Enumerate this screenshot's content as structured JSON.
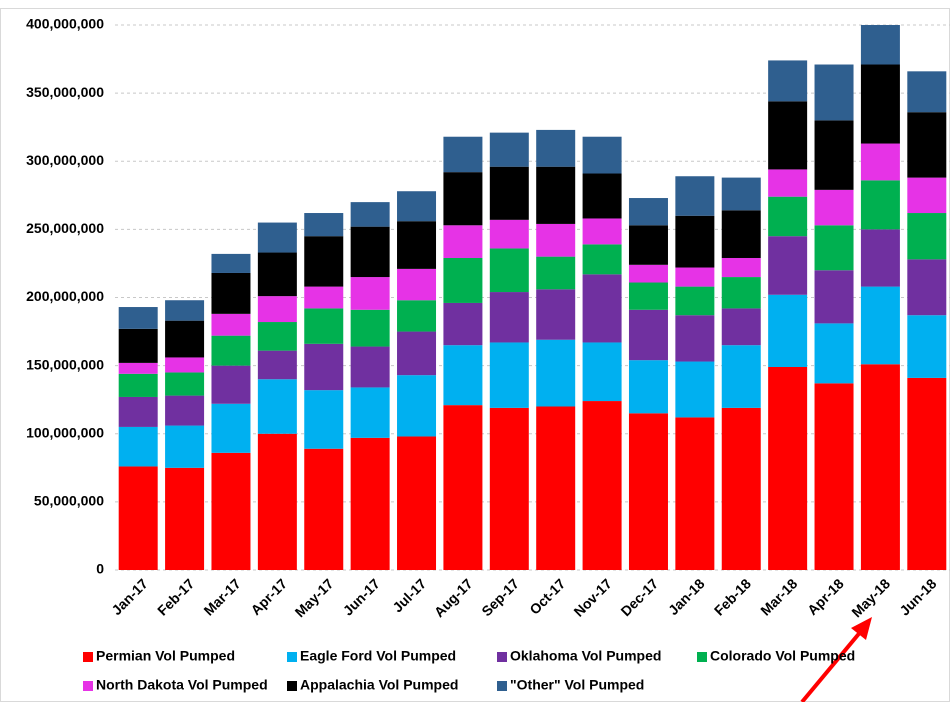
{
  "chart_data": {
    "type": "stacked_bar",
    "categories": [
      "Jan-17",
      "Feb-17",
      "Mar-17",
      "Apr-17",
      "May-17",
      "Jun-17",
      "Jul-17",
      "Aug-17",
      "Sep-17",
      "Oct-17",
      "Nov-17",
      "Dec-17",
      "Jan-18",
      "Feb-18",
      "Mar-18",
      "Apr-18",
      "May-18",
      "Jun-18"
    ],
    "series": [
      {
        "name": "Permian Vol Pumped",
        "color": "#ff0000",
        "values": [
          76000000,
          75000000,
          86000000,
          100000000,
          89000000,
          97000000,
          98000000,
          121000000,
          119000000,
          120000000,
          124000000,
          115000000,
          112000000,
          119000000,
          149000000,
          137000000,
          151000000,
          141000000
        ]
      },
      {
        "name": "Eagle Ford Vol Pumped",
        "color": "#00b0f0",
        "values": [
          29000000,
          31000000,
          36000000,
          40000000,
          43000000,
          37000000,
          45000000,
          44000000,
          48000000,
          49000000,
          43000000,
          39000000,
          41000000,
          46000000,
          53000000,
          44000000,
          57000000,
          46000000
        ]
      },
      {
        "name": "Oklahoma Vol Pumped",
        "color": "#7030a0",
        "values": [
          22000000,
          22000000,
          28000000,
          21000000,
          34000000,
          30000000,
          32000000,
          31000000,
          37000000,
          37000000,
          50000000,
          37000000,
          34000000,
          27000000,
          43000000,
          39000000,
          42000000,
          41000000
        ]
      },
      {
        "name": "Colorado Vol Pumped",
        "color": "#00b050",
        "values": [
          17000000,
          17000000,
          22000000,
          21000000,
          26000000,
          27000000,
          23000000,
          33000000,
          32000000,
          24000000,
          22000000,
          20000000,
          21000000,
          23000000,
          29000000,
          33000000,
          36000000,
          34000000
        ]
      },
      {
        "name": "North Dakota Vol Pumped",
        "color": "#e633e6",
        "values": [
          8000000,
          11000000,
          16000000,
          19000000,
          16000000,
          24000000,
          23000000,
          24000000,
          21000000,
          24000000,
          19000000,
          13000000,
          14000000,
          14000000,
          20000000,
          26000000,
          27000000,
          26000000
        ]
      },
      {
        "name": "Appalachia Vol Pumped",
        "color": "#000000",
        "values": [
          25000000,
          27000000,
          30000000,
          32000000,
          37000000,
          37000000,
          35000000,
          39000000,
          39000000,
          42000000,
          33000000,
          29000000,
          38000000,
          35000000,
          50000000,
          51000000,
          58000000,
          48000000
        ]
      },
      {
        "name": "\"Other\" Vol Pumped",
        "color": "#2f5f8f",
        "values": [
          16000000,
          15000000,
          14000000,
          22000000,
          17000000,
          18000000,
          22000000,
          26000000,
          25000000,
          27000000,
          27000000,
          20000000,
          29000000,
          24000000,
          30000000,
          41000000,
          29000000,
          30000000
        ]
      }
    ],
    "ylim": [
      0,
      400000000
    ],
    "yticks": [
      0,
      {
        "value": 50000000,
        "label": "50,000,000"
      },
      {
        "value": 100000000,
        "label": "100,000,000"
      },
      {
        "value": 150000000,
        "label": "150,000,000"
      },
      {
        "value": 200000000,
        "label": "200,000,000"
      },
      {
        "value": 250000000,
        "label": "250,000,000"
      },
      {
        "value": 300000000,
        "label": "300,000,000"
      },
      {
        "value": 350000000,
        "label": "350,000,000"
      },
      {
        "value": 400000000,
        "label": "400,000,000"
      }
    ],
    "grid": true
  }
}
